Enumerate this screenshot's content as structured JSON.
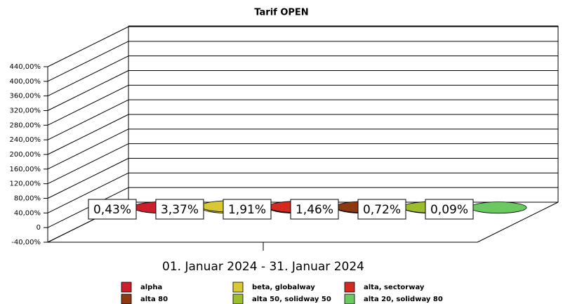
{
  "chart_data": {
    "type": "bar3d",
    "title": "Tarif OPEN",
    "categories": [
      "01. Januar 2024 - 31. Januar 2024"
    ],
    "series": [
      {
        "name": "alpha",
        "color": "#cc1f2b",
        "values": [
          0.43
        ],
        "value_labels": [
          "0,43%"
        ]
      },
      {
        "name": "beta, globalway",
        "color": "#d8c834",
        "values": [
          3.37
        ],
        "value_labels": [
          "3,37%"
        ]
      },
      {
        "name": "alta, sectorway",
        "color": "#d42a20",
        "values": [
          1.91
        ],
        "value_labels": [
          "1,91%"
        ]
      },
      {
        "name": "alta 80",
        "color": "#8b3a12",
        "values": [
          1.46
        ],
        "value_labels": [
          "1,46%"
        ]
      },
      {
        "name": "alta 50, solidway 50",
        "color": "#9cbe2c",
        "values": [
          0.72
        ],
        "value_labels": [
          "0,72%"
        ]
      },
      {
        "name": "alta 20, solidway 80",
        "color": "#6cc860",
        "values": [
          0.09
        ],
        "value_labels": [
          "0,09%"
        ]
      }
    ],
    "ylim": [
      -40,
      440
    ],
    "yticks": [
      {
        "value": -40,
        "label": "-40,00%"
      },
      0,
      {
        "value": 40,
        "label": "40,00%"
      },
      {
        "value": 80,
        "label": "80,00%"
      },
      {
        "value": 120,
        "label": "120,00%"
      },
      {
        "value": 160,
        "label": "160,00%"
      },
      {
        "value": 200,
        "label": "200,00%"
      },
      {
        "value": 240,
        "label": "240,00%"
      },
      {
        "value": 280,
        "label": "280,00%"
      },
      {
        "value": 320,
        "label": "320,00%"
      },
      {
        "value": 360,
        "label": "360,00%"
      },
      {
        "value": 400,
        "label": "400,00%"
      },
      {
        "value": 440,
        "label": "440,00%"
      }
    ],
    "grid": true
  }
}
